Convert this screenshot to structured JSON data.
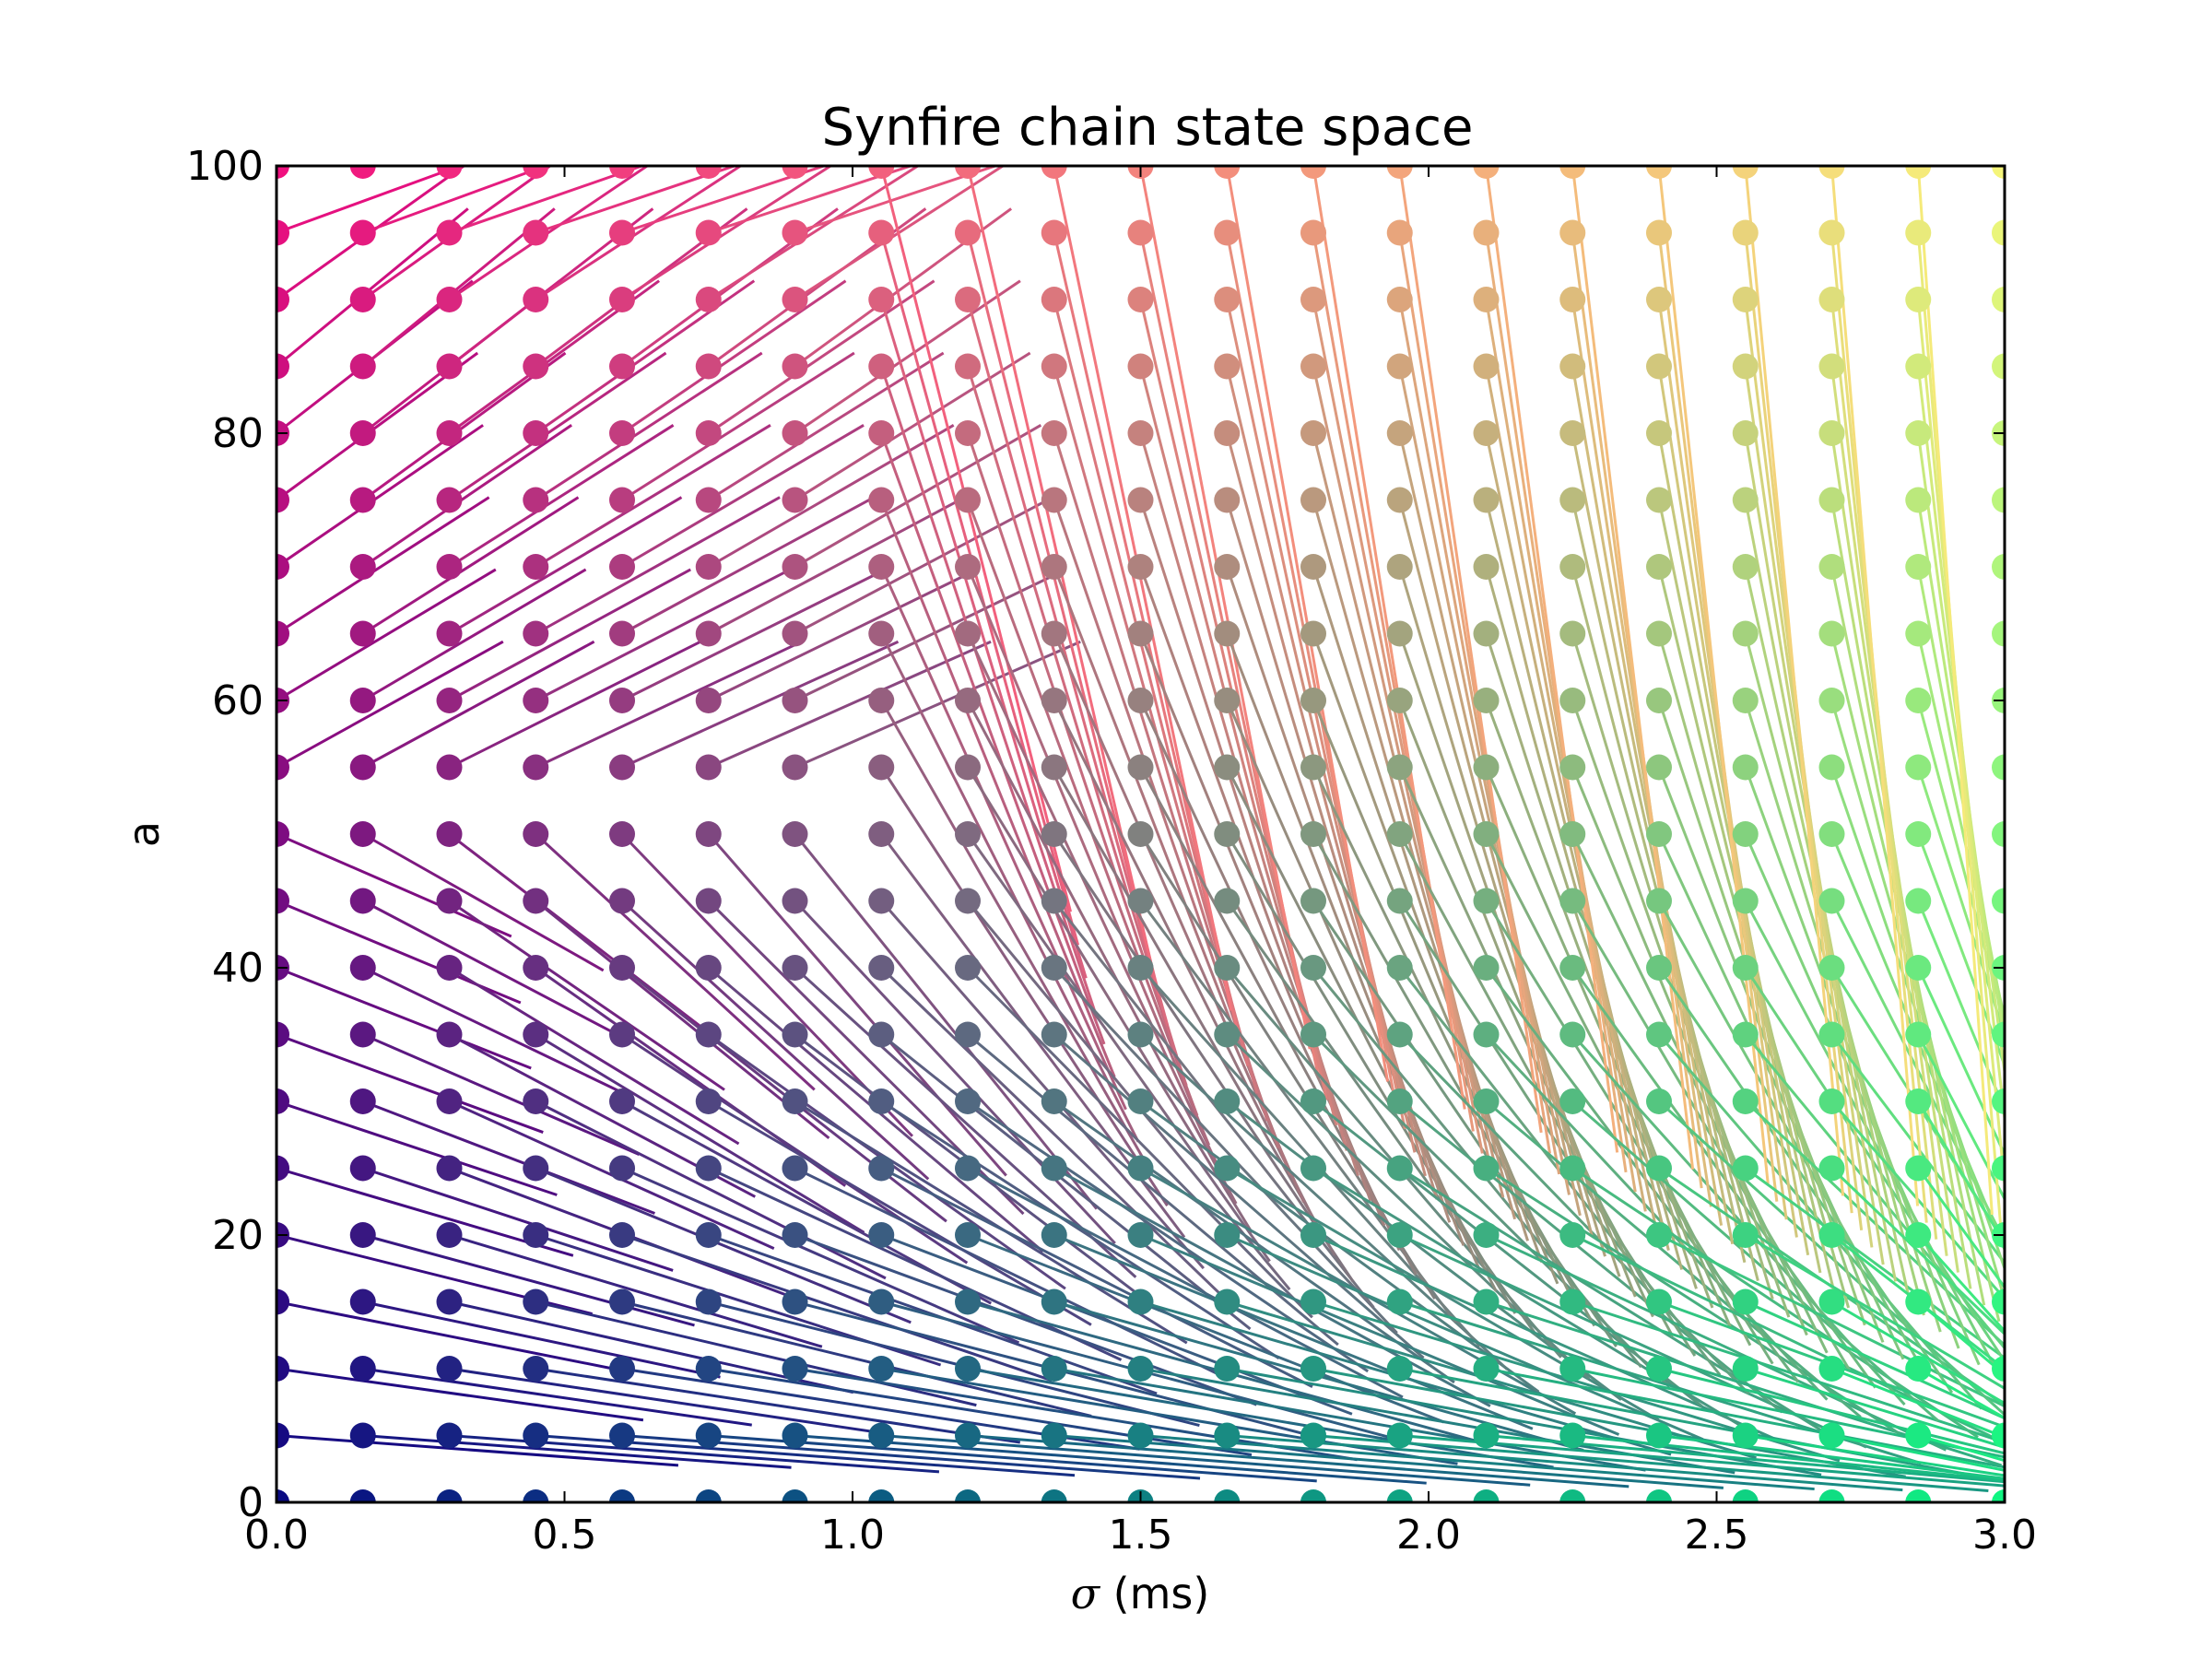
{
  "chart_data": {
    "type": "scatter",
    "title": "Synfire chain state space",
    "xlabel_symbol": "σ",
    "xlabel_unit": " (ms)",
    "ylabel": "a",
    "xlim": [
      0.0,
      3.0
    ],
    "ylim": [
      0,
      100
    ],
    "x_ticks": [
      0.0,
      0.5,
      1.0,
      1.5,
      2.0,
      2.5,
      3.0
    ],
    "x_tick_labels": [
      "0.0",
      "0.5",
      "1.0",
      "1.5",
      "2.0",
      "2.5",
      "3.0"
    ],
    "y_ticks": [
      0,
      20,
      40,
      60,
      80,
      100
    ],
    "y_tick_labels": [
      "0",
      "20",
      "40",
      "60",
      "80",
      "100"
    ],
    "grid": false,
    "sigma_grid": {
      "start": 0.0,
      "step": 0.15,
      "count": 21
    },
    "a_grid": {
      "start": 0,
      "step": 5,
      "count": 21
    },
    "marker": "circle",
    "segment_description": "each grid state (sigma, a) is a dot with a line to its next state",
    "colormap": {
      "sigma0_a0": "#0a0a82",
      "sigma0_a100": "#f0107f",
      "sigma3_a0": "#10f582",
      "sigma3_a100": "#f5f57a"
    }
  }
}
